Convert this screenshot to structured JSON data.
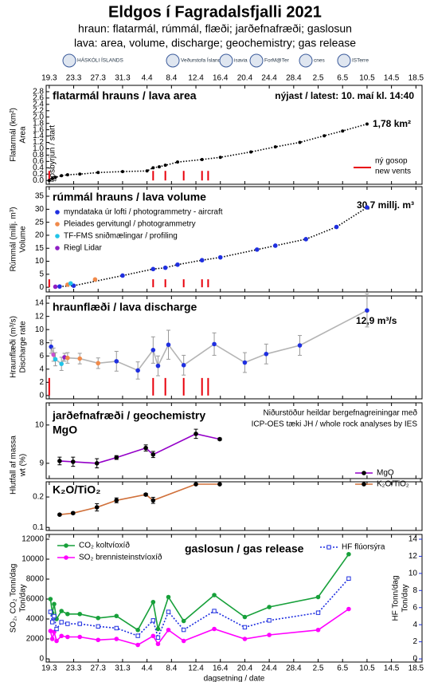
{
  "header": {
    "title": "Eldgos í Fagradalsfjalli 2021",
    "subtitle": [
      "hraun: flatarmál, rúmmál, flæði; jarðefnafræði; gaslosun",
      "lava: area, volume, discharge; geochemistry; gas release"
    ],
    "logos": [
      "HÁSKÓLI ÍSLANDS",
      "Veðurstofa Íslands",
      "isavia",
      "ForM@Ter",
      "cnes",
      "ISTerre"
    ]
  },
  "x_axis": {
    "xlim": [
      -0.5,
      61
    ],
    "xlabel": "dagsetning / date",
    "xticks": [
      {
        "value": 0,
        "label": "19.3"
      },
      {
        "value": 4,
        "label": "23.3"
      },
      {
        "value": 8,
        "label": "27.3"
      },
      {
        "value": 12,
        "label": "31.3"
      },
      {
        "value": 16,
        "label": "4.4"
      },
      {
        "value": 20,
        "label": "8.4"
      },
      {
        "value": 24,
        "label": "12.4"
      },
      {
        "value": 28,
        "label": "16.4"
      },
      {
        "value": 32,
        "label": "20.4"
      },
      {
        "value": 36,
        "label": "24.4"
      },
      {
        "value": 40,
        "label": "28.4"
      },
      {
        "value": 44,
        "label": "2.5"
      },
      {
        "value": 48,
        "label": "6.5"
      },
      {
        "value": 52,
        "label": "10.5"
      },
      {
        "value": 56,
        "label": "14.5"
      },
      {
        "value": 60,
        "label": "18.5"
      }
    ]
  },
  "vents": {
    "x": [
      0,
      17,
      19,
      22,
      25,
      26
    ],
    "label": [
      "ný gosop",
      "new vents"
    ],
    "color": "#e8000b",
    "start_label": "gosbyrjun / start"
  },
  "chart_data": [
    {
      "type": "line",
      "title": "flatarmál hrauns / lava area",
      "annotations": [
        "nýjast / latest: 10. maí kl. 14:40",
        "1,78 km²"
      ],
      "ylabel": [
        "Flatarmál (km²)",
        "Area"
      ],
      "ylim": [
        -0.12,
        3.0
      ],
      "yticks": [
        {
          "value": 0,
          "label": "0.0"
        },
        0.2,
        0.4,
        0.6,
        0.8,
        {
          "value": 1,
          "label": "1.0"
        },
        1.2,
        1.4,
        1.6,
        1.8,
        {
          "value": 2,
          "label": "2.0"
        },
        2.2,
        2.4,
        2.6,
        2.8
      ],
      "series": [
        {
          "color": "#000000",
          "line_color": "#000000",
          "dash": "1.5,2",
          "x": [
            0,
            0.5,
            1,
            2,
            3,
            5,
            8,
            12,
            16,
            17,
            18,
            19,
            21,
            25,
            28,
            33,
            37,
            41,
            45,
            48,
            52
          ],
          "values": [
            0,
            0.06,
            0.1,
            0.15,
            0.18,
            0.2,
            0.25,
            0.28,
            0.3,
            0.4,
            0.43,
            0.48,
            0.58,
            0.66,
            0.73,
            0.9,
            1.06,
            1.2,
            1.41,
            1.56,
            1.78
          ]
        }
      ]
    },
    {
      "type": "line",
      "title": "rúmmál hrauns / lava volume",
      "annotations": [
        "30,7 millj. m³"
      ],
      "ylabel": [
        "Rúmmál (millj. m³)",
        "Volume"
      ],
      "ylim": [
        -1.8,
        38.7
      ],
      "yticks": [
        0,
        5,
        10,
        15,
        20,
        25,
        30,
        35
      ],
      "series": [
        {
          "name": "myndataka úr lofti / photogrammetry - aircraft",
          "color": "#1f2fe0",
          "line_color": "#000000",
          "dash": "1.5,2",
          "x": [
            1.7,
            4,
            12,
            17,
            19,
            21,
            25,
            28,
            34,
            37,
            42,
            47,
            52
          ],
          "values": [
            0.3,
            0.6,
            4.5,
            7,
            7.5,
            8.7,
            10.4,
            11.5,
            14.5,
            16,
            18.5,
            23.2,
            30.7
          ]
        },
        {
          "name": "Pleiades gervitungl / photogrammetry",
          "color": "#f08a4b",
          "x": [
            3,
            7.5
          ],
          "values": [
            1.0,
            3.0
          ]
        },
        {
          "name": "TF-FMS sniðmælingar / profiling",
          "color": "#22c4e8",
          "x": [
            3.5
          ],
          "values": [
            1.5
          ]
        },
        {
          "name": "Riegl Lidar",
          "color": "#8e1fc4",
          "x": [
            1
          ],
          "values": [
            0.2
          ]
        }
      ]
    },
    {
      "type": "line",
      "title": "hraunflæði / lava discharge",
      "annotations": [
        "12,9 m³/s"
      ],
      "ylabel": [
        "Hraunflæði (m³/s)",
        "Discharge rate"
      ],
      "ylim": [
        -0.5,
        15.1
      ],
      "yticks": [
        0,
        2,
        4,
        6,
        8,
        10,
        12,
        14
      ],
      "series": [
        {
          "color": "#1f2fe0",
          "line_color": "#b4b4b4",
          "error_color": "#999999",
          "point_colors": [
            "#1f2fe0",
            "#c94fd0",
            "#22c4e8",
            "#22c4e8",
            "#8e1fc4",
            "#f08a4b",
            "#f08a4b",
            "#f08a4b",
            "#1f2fe0",
            "#1f2fe0",
            "#1f2fe0",
            "#1f2fe0",
            "#1f2fe0",
            "#1f2fe0",
            "#1f2fe0",
            "#1f2fe0",
            "#1f2fe0",
            "#1f2fe0",
            "#1f2fe0"
          ],
          "x": [
            0.3,
            0.7,
            1,
            2,
            2.5,
            3,
            5,
            8,
            11,
            14.5,
            17,
            17.8,
            19.5,
            22,
            27,
            32,
            35.5,
            41,
            52
          ],
          "values": [
            7.4,
            6.2,
            5.5,
            4.8,
            5.8,
            5.7,
            5.6,
            4.9,
            5.2,
            3.8,
            6.9,
            4.5,
            7.7,
            4.6,
            7.8,
            5.0,
            6.3,
            7.6,
            12.9
          ],
          "errors": [
            1,
            1,
            1,
            1,
            0.6,
            0.8,
            0.8,
            0.8,
            1.5,
            1.3,
            2,
            1.5,
            2.2,
            1.5,
            1.7,
            1.5,
            1.5,
            1.5,
            2.5
          ]
        }
      ]
    },
    {
      "type": "line",
      "title": "jarðefnafræði / geochemistry",
      "subtitle": "MgO",
      "note": [
        "Niðurstöður heildar bergefnagreiningar með",
        "ICP-OES tæki JH / whole rock analyses by IES"
      ],
      "ylabel": [
        "Hlutfall af massa",
        "wt (%)"
      ],
      "ylim": [
        8.6,
        10.58
      ],
      "yticks": [
        9,
        10
      ],
      "series": [
        {
          "name": "MgO",
          "color": "#9400c8",
          "line_color": "#9400c8",
          "marker_color": "#000000",
          "error_color": "#000000",
          "x": [
            1.7,
            3.9,
            7.8,
            11,
            15.8,
            17,
            24,
            27.9
          ],
          "values": [
            9.06,
            9.04,
            9.0,
            9.15,
            9.4,
            9.23,
            9.77,
            9.63
          ],
          "errors": [
            0.1,
            0.12,
            0.12,
            0.05,
            0.08,
            0.08,
            0.12,
            0.03
          ]
        }
      ]
    },
    {
      "type": "line",
      "title": "K₂O/TiO₂",
      "ylim": [
        0.09,
        0.25
      ],
      "yticks": [
        0.1,
        0.2
      ],
      "series": [
        {
          "name": "K₂O/TiO₂",
          "color": "#d0703a",
          "line_color": "#d0703a",
          "marker_color": "#000000",
          "error_color": "#000000",
          "x": [
            1.7,
            3.9,
            7.8,
            11,
            15.8,
            17,
            24,
            27.9
          ],
          "values": [
            0.142,
            0.147,
            0.166,
            0.189,
            0.208,
            0.189,
            0.242,
            0.242
          ],
          "errors": [
            0.003,
            0.003,
            0.012,
            0.008,
            0.004,
            0.01,
            0.002,
            0.002
          ]
        }
      ]
    },
    {
      "type": "line",
      "title": "gaslosun / gas release",
      "ylabel": [
        "SO₂, CO₂ Tonn/dag",
        "Ton/day"
      ],
      "y2label": [
        "HF Tonn/dag",
        "Ton/day"
      ],
      "ylim": [
        -320,
        12480
      ],
      "yticks": [
        0,
        2000,
        4000,
        6000,
        8000,
        10000,
        12000
      ],
      "y2lim": [
        -0.37,
        14.56
      ],
      "y2ticks": [
        0,
        2,
        4,
        6,
        8,
        10,
        12,
        14
      ],
      "y2color": "#1f2fe0",
      "series": [
        {
          "name": "CO₂ koltvíoxíð",
          "color": "#17a03a",
          "line_color": "#17a03a",
          "x": [
            0.2,
            0.5,
            0.8,
            1.2,
            2,
            3,
            5,
            8,
            11,
            14.5,
            17,
            17.8,
            19.5,
            22,
            27,
            32,
            36,
            44,
            49
          ],
          "values": [
            6000,
            4600,
            5500,
            4000,
            4800,
            4500,
            4500,
            4100,
            4300,
            2900,
            5700,
            3000,
            6200,
            3800,
            6400,
            4200,
            5200,
            6200,
            10500
          ]
        },
        {
          "name": "SO₂ brennisteinstvíoxíð",
          "color": "#ff00ff",
          "line_color": "#ff00ff",
          "x": [
            0.2,
            0.5,
            0.8,
            1.2,
            2,
            3,
            5,
            8,
            11,
            14.5,
            17,
            17.8,
            19.5,
            22,
            27,
            32,
            36,
            44,
            49
          ],
          "values": [
            2800,
            2000,
            2700,
            1800,
            2300,
            2200,
            2200,
            1900,
            2000,
            1400,
            2300,
            1500,
            2900,
            1800,
            3000,
            2000,
            2400,
            2900,
            5000
          ]
        },
        {
          "name": "HF flúorsýra",
          "color": "#1f2fe0",
          "line_color": "#1f2fe0",
          "dash": "2,2",
          "marker": "square-open",
          "axis": "y2",
          "x": [
            0.2,
            0.5,
            0.8,
            1.2,
            2,
            3,
            5,
            8,
            11,
            14.5,
            17,
            17.8,
            19.5,
            22,
            27,
            32,
            36,
            44,
            49
          ],
          "values": [
            5.5,
            4.3,
            5.0,
            3.5,
            4.3,
            4.1,
            4.1,
            3.8,
            3.6,
            2.7,
            4.5,
            2.5,
            5.5,
            3.4,
            5.6,
            3.7,
            4.5,
            5.4,
            9.4
          ]
        }
      ]
    }
  ]
}
